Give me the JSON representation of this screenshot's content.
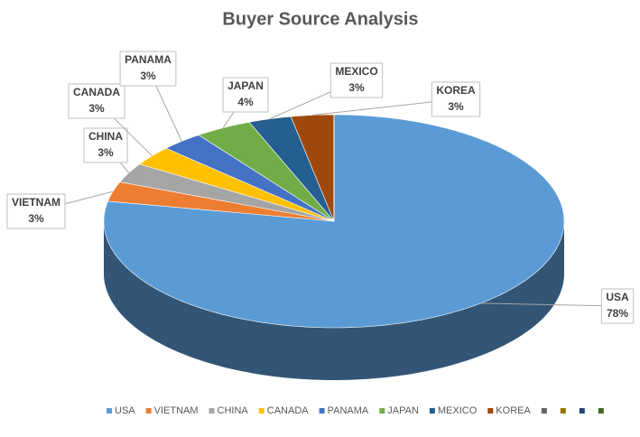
{
  "chart_data": {
    "type": "pie",
    "title": "Buyer Source Analysis",
    "three_d": true,
    "categories": [
      "USA",
      "VIETNAM",
      "CHINA",
      "CANADA",
      "PANAMA",
      "JAPAN",
      "MEXICO",
      "KOREA",
      null,
      null,
      null,
      null
    ],
    "values": [
      78,
      3,
      3,
      3,
      3,
      4,
      3,
      3,
      0,
      0,
      0,
      0
    ],
    "value_labels": [
      "78%",
      "3%",
      "3%",
      "3%",
      "3%",
      "4%",
      "3%",
      "3%",
      null,
      null,
      null,
      null
    ],
    "colors": [
      "#5b9bd5",
      "#ed7d31",
      "#a5a5a5",
      "#ffc000",
      "#4472c4",
      "#70ad47",
      "#255e91",
      "#9e480e",
      "#636363",
      "#997300",
      "#264478",
      "#43682b"
    ],
    "legend": "bottom"
  }
}
